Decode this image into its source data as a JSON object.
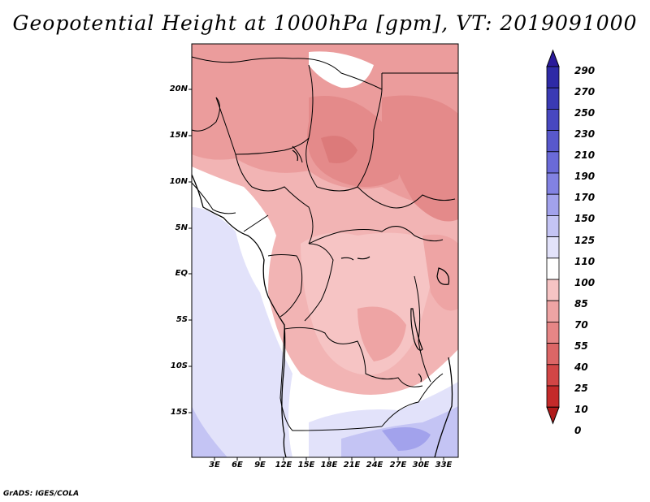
{
  "title": "Geopotential Height at 1000hPa [gpm], VT: 2019091000",
  "credit": "GrADS: IGES/COLA",
  "map": {
    "y_axis_labels": [
      "20N",
      "15N",
      "10N",
      "5N",
      "EQ",
      "5S",
      "10S",
      "15S"
    ],
    "x_axis_labels": [
      "3E",
      "6E",
      "9E",
      "12E",
      "15E",
      "18E",
      "21E",
      "24E",
      "27E",
      "30E",
      "33E"
    ]
  },
  "colorbar": {
    "levels": [
      "290",
      "270",
      "250",
      "230",
      "210",
      "190",
      "170",
      "150",
      "125",
      "110",
      "100",
      "85",
      "70",
      "55",
      "40",
      "25",
      "10",
      "0"
    ],
    "colors": [
      "#2a1a9a",
      "#2e2aa6",
      "#3a3ab4",
      "#4848c0",
      "#5858cc",
      "#6a6ad8",
      "#8282e2",
      "#a2a2ec",
      "#c4c4f4",
      "#e2e2fa",
      "#ffffff",
      "#f6c4c4",
      "#eea4a4",
      "#e68686",
      "#dc6666",
      "#d24646",
      "#c42a2a",
      "#b01a1a"
    ]
  }
}
